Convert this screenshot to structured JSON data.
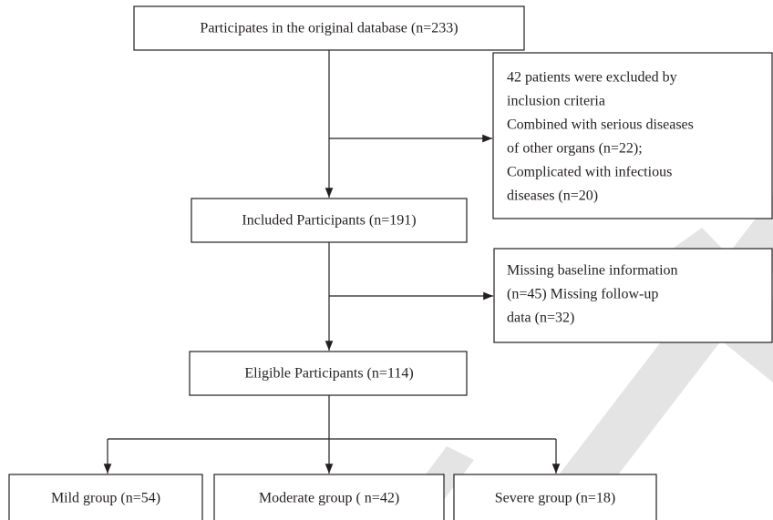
{
  "nodes": [
    {
      "label": "Participates in the original database (n=233)"
    },
    {
      "lines": [
        "42 patients were excluded by",
        "inclusion criteria",
        "Combined with serious diseases",
        "of other organs (n=22);",
        "Complicated with infectious",
        "diseases (n=20)"
      ]
    },
    {
      "label": "Included Participants (n=191)"
    },
    {
      "lines": [
        "Missing baseline information",
        "(n=45) Missing follow-up",
        "data (n=32)"
      ]
    },
    {
      "label": "Eligible Participants (n=114)"
    },
    {
      "label": "Mild group (n=54)"
    },
    {
      "label": "Moderate group ( n=42)"
    },
    {
      "label": "Severe group (n=18)"
    }
  ]
}
